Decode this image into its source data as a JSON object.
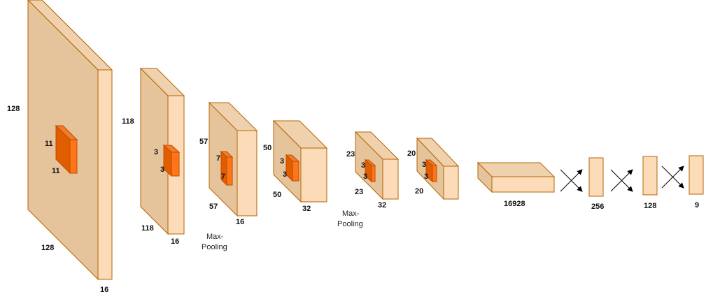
{
  "colors": {
    "block_front": "#e6c49b",
    "block_top": "#f0d1ad",
    "block_side": "#fcdcb8",
    "block_stroke": "#b46504",
    "kernel_front": "#e05e00",
    "kernel_top": "#f07c2a",
    "kernel_side": "#ff7519",
    "kernel_stroke": "#c04b00",
    "arrow": "#000000"
  },
  "layers": [
    {
      "height": "128",
      "width": "128",
      "depth": "16",
      "kernel": {
        "a": "11",
        "b": "11"
      }
    },
    {
      "height": "118",
      "width": "118",
      "depth": "16",
      "kernel": {
        "a": "3",
        "b": "3"
      }
    },
    {
      "height": "57",
      "width": "57",
      "depth": "16",
      "kernel": {
        "a": "7",
        "b": "7"
      }
    },
    {
      "height": "50",
      "width": "50",
      "depth": "32",
      "kernel": {
        "a": "3",
        "b": "3"
      }
    },
    {
      "height": "23",
      "width": "23",
      "depth": "32",
      "kernel": {
        "a": "3",
        "b": "3"
      }
    },
    {
      "height": "20",
      "width": "20",
      "depth": "",
      "kernel": {
        "a": "3",
        "b": "3"
      }
    }
  ],
  "pooling": [
    {
      "line1": "Max-",
      "line2": "Pooling"
    },
    {
      "line1": "Max-",
      "line2": "Pooling"
    }
  ],
  "flatten": {
    "label": "16928"
  },
  "dense": [
    {
      "label": "256"
    },
    {
      "label": "128"
    },
    {
      "label": "9"
    }
  ]
}
